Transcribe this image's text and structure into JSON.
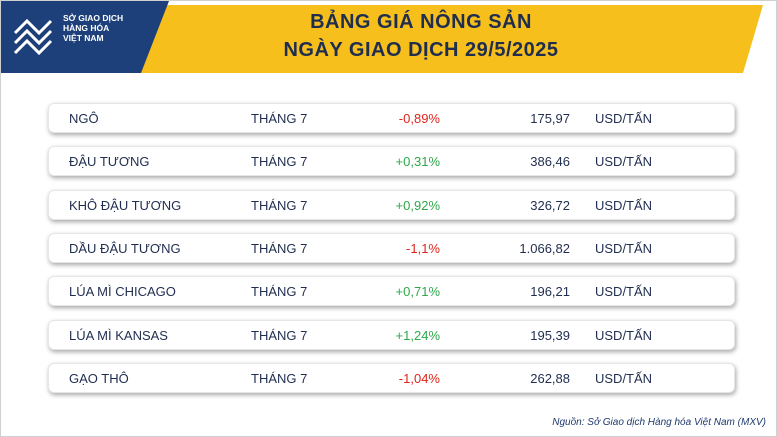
{
  "logo": {
    "lines": [
      "SỞ GIAO DỊCH",
      "HÀNG HÓA",
      "VIỆT NAM"
    ]
  },
  "header": {
    "title": [
      "BẢNG GIÁ NÔNG SẢN",
      "NGÀY GIAO DỊCH 29/5/2025"
    ]
  },
  "table": {
    "rows": [
      [
        "NGÔ",
        "THÁNG 7",
        "-0,89%",
        "175,97",
        "USD/TẤN"
      ],
      [
        "ĐẬU TƯƠNG",
        "THÁNG 7",
        "+0,31%",
        "386,46",
        "USD/TẤN"
      ],
      [
        "KHÔ ĐẬU TƯƠNG",
        "THÁNG 7",
        "+0,92%",
        "326,72",
        "USD/TẤN"
      ],
      [
        "DẦU ĐẬU TƯƠNG",
        "THÁNG 7",
        "-1,1%",
        "1.066,82",
        "USD/TẤN"
      ],
      [
        "LÚA MÌ CHICAGO",
        "THÁNG 7",
        "+0,71%",
        "196,21",
        "USD/TẤN"
      ],
      [
        "LÚA MÌ KANSAS",
        "THÁNG 7",
        "+1,24%",
        "195,39",
        "USD/TẤN"
      ],
      [
        "GẠO THÔ",
        "THÁNG 7",
        "-1,04%",
        "262,88",
        "USD/TẤN"
      ]
    ]
  },
  "footer": {
    "source": "Nguồn: Sở Giao dịch Hàng hóa Việt Nam (MXV)"
  }
}
